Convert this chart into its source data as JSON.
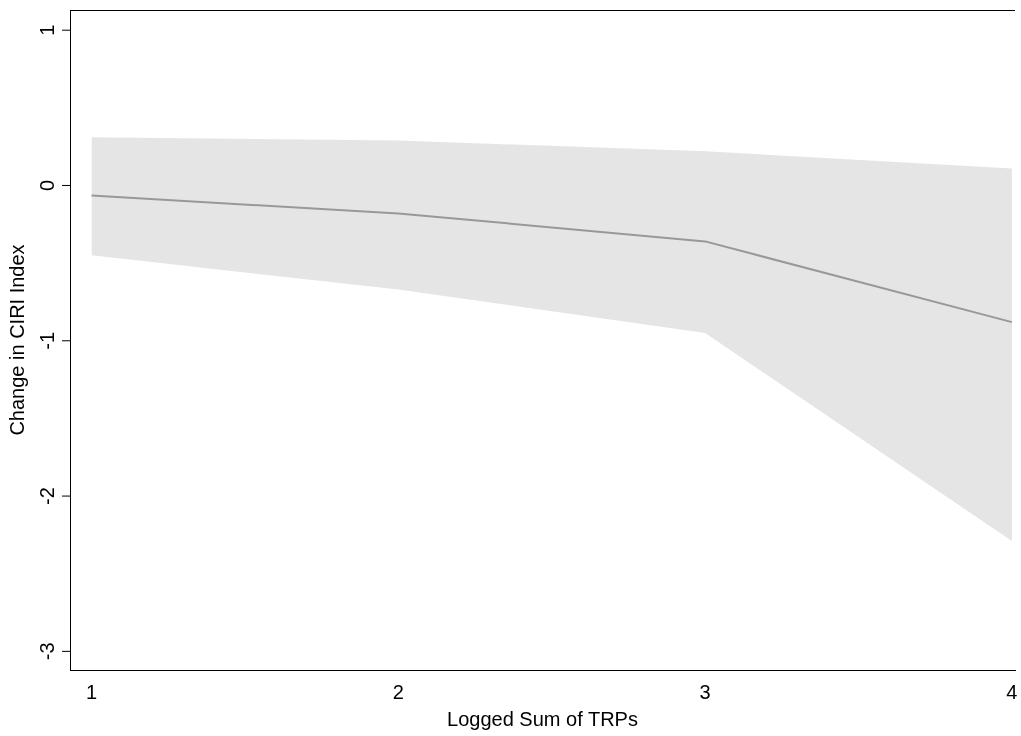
{
  "chart_data": {
    "type": "line",
    "xlabel": "Logged Sum of TRPs",
    "ylabel": "Change in CIRI Index",
    "x": [
      1,
      2,
      3,
      4
    ],
    "series": [
      {
        "color": "#999999",
        "values": [
          -0.065,
          -0.18,
          -0.36,
          -0.88
        ],
        "lower": [
          -0.45,
          -0.67,
          -0.95,
          -2.29
        ],
        "upper": [
          0.31,
          0.29,
          0.22,
          0.11
        ]
      }
    ],
    "xlim": [
      0.93,
      4.01
    ],
    "ylim": [
      -3.12,
      1.13
    ],
    "xticks": [
      1,
      2,
      3,
      4
    ],
    "yticks": [
      -3,
      -2,
      -1,
      0,
      1
    ],
    "grid": false,
    "legend": false,
    "marker": "none",
    "line_style": "solid"
  }
}
